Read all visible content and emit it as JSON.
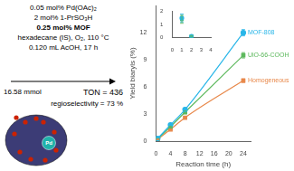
{
  "chart_data": [
    {
      "type": "scatter",
      "xlabel": "Reaction time (h)",
      "ylabel": "Yield biaryls (%)",
      "x": [
        0.5,
        4,
        8,
        24
      ],
      "xlim": [
        0,
        26
      ],
      "ylim": [
        0,
        15
      ],
      "xticks": [
        0,
        4,
        8,
        12,
        16,
        20,
        24
      ],
      "yticks": [
        0,
        3,
        6,
        9,
        12
      ],
      "grid": false,
      "series": [
        {
          "name": "MOF-808",
          "color": "#29b6e8",
          "marker": "circle",
          "line_style": "solid",
          "values": [
            0.3,
            1.8,
            3.5,
            12.0
          ],
          "errors": [
            0.05,
            0.05,
            0.15,
            0.35
          ]
        },
        {
          "name": "UiO-66-COOH",
          "color": "#5cb85c",
          "marker": "square",
          "line_style": "solid",
          "values": [
            0.25,
            1.6,
            3.2,
            9.5
          ],
          "errors": [
            0.05,
            0.05,
            0.15,
            0.3
          ]
        },
        {
          "name": "Homogeneous",
          "color": "#e8884a",
          "marker": "square",
          "line_style": "solid",
          "values": [
            0.2,
            1.3,
            2.6,
            6.7
          ],
          "errors": [
            0.05,
            0.05,
            0.1,
            0.2
          ]
        }
      ],
      "annotations": [
        "0.05 mol% Pd(OAc)₂",
        "2 mol% 1-PrSO₃H",
        "0.25 mol% MOF",
        "hexadecane (IS), O₂, 110 °C",
        "0.120 mL AcOH, 17 h",
        "16.58 mmol",
        "TON = 436",
        "regioselectivity = 73 %",
        "Pd"
      ]
    },
    {
      "type": "scatter",
      "x": [
        1,
        2
      ],
      "xlim": [
        0,
        4
      ],
      "ylim": [
        0,
        2
      ],
      "xticks": [
        0,
        1,
        2,
        3,
        4
      ],
      "yticks": [
        0,
        1,
        2
      ],
      "grid": false,
      "series": [
        {
          "color": "#29b6e8",
          "marker": "circle",
          "values": [
            1.5,
            0.12
          ],
          "errors": [
            0.3,
            0.05
          ]
        },
        {
          "color": "#5cb85c",
          "marker": "square",
          "values": [
            1.4,
            0.12
          ],
          "errors": [
            0.3,
            0.05
          ]
        }
      ]
    }
  ]
}
